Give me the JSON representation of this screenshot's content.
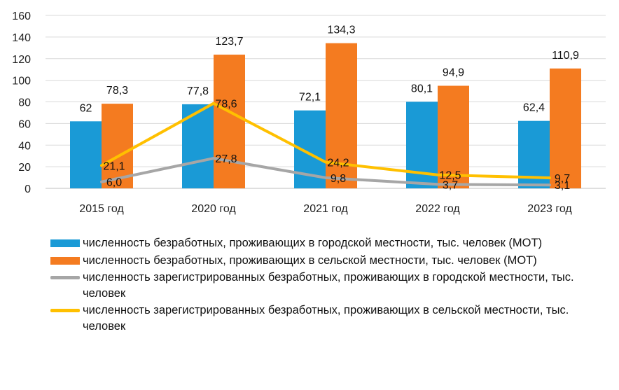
{
  "chart_data": {
    "type": "bar",
    "categories": [
      "2015 год",
      "2020 год",
      "2021 год",
      "2022 год",
      "2023 год"
    ],
    "ylim": [
      0,
      160
    ],
    "yticks": [
      0,
      20,
      40,
      60,
      80,
      100,
      120,
      140,
      160
    ],
    "grid": true,
    "legend_position": "bottom",
    "bar_series": [
      {
        "name": "численность безработных, проживающих в городской местности, тыс. человек (МОТ)",
        "color": "#1a9ad6",
        "values": [
          62,
          77.8,
          72.1,
          80.1,
          62.4
        ],
        "labels": [
          "62",
          "77,8",
          "72,1",
          "80,1",
          "62,4"
        ]
      },
      {
        "name": "численность безработных, проживающих в сельской местности, тыс. человек (МОТ)",
        "color": "#f47b20",
        "values": [
          78.3,
          123.7,
          134.3,
          94.9,
          110.9
        ],
        "labels": [
          "78,3",
          "123,7",
          "134,3",
          "94,9",
          "110,9"
        ]
      }
    ],
    "line_series": [
      {
        "name": "численность зарегистрированных безработных, проживающих в городской местности, тыс. человек",
        "color": "#a6a6a6",
        "values": [
          6.0,
          27.8,
          9.8,
          3.7,
          3.1
        ],
        "labels": [
          "6,0",
          "27,8",
          "9,8",
          "3,7",
          "3,1"
        ]
      },
      {
        "name": "численность зарегистрированных безработных, проживающих в сельской местности, тыс. человек",
        "color": "#ffc000",
        "values": [
          21.1,
          78.6,
          24.2,
          12.5,
          9.7
        ],
        "labels": [
          "21,1",
          "78,6",
          "24,2",
          "12,5",
          "9,7"
        ]
      }
    ]
  }
}
